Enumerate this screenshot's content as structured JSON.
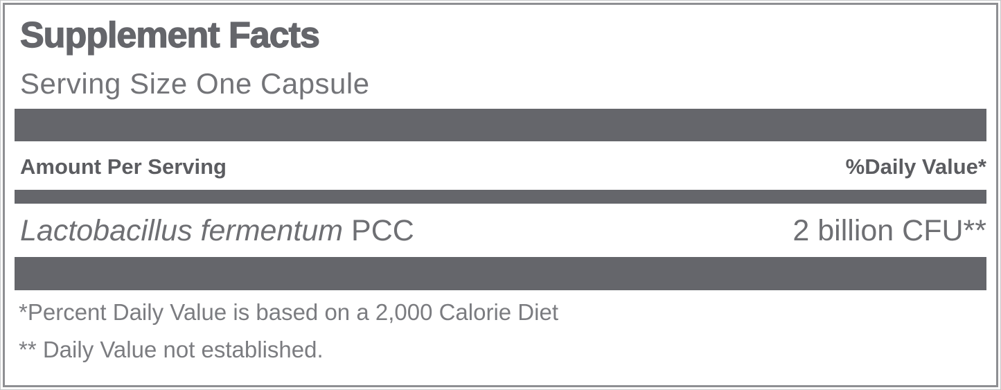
{
  "panel": {
    "title": "Supplement Facts",
    "serving_size": "Serving Size One Capsule",
    "header_row": {
      "left": "Amount Per Serving",
      "right": "%Daily Value*"
    },
    "rows": [
      {
        "name_italic": "Lactobacillus fermentum",
        "name_suffix": " PCC",
        "amount": "2 billion CFU**"
      }
    ],
    "footnotes": [
      "*Percent Daily Value is based on a 2,000 Calorie Diet",
      "** Daily Value not established."
    ],
    "colors": {
      "bar": "#65666B",
      "title_text": "#65666B",
      "serving_text": "#737478",
      "header_text": "#5B5C60",
      "ingredient_text": "#6E6F73",
      "footnote_text": "#7B7C80",
      "inner_border": "#8E8F92",
      "outer_border": "#C6C7C9",
      "background": "#FFFFFF"
    }
  }
}
